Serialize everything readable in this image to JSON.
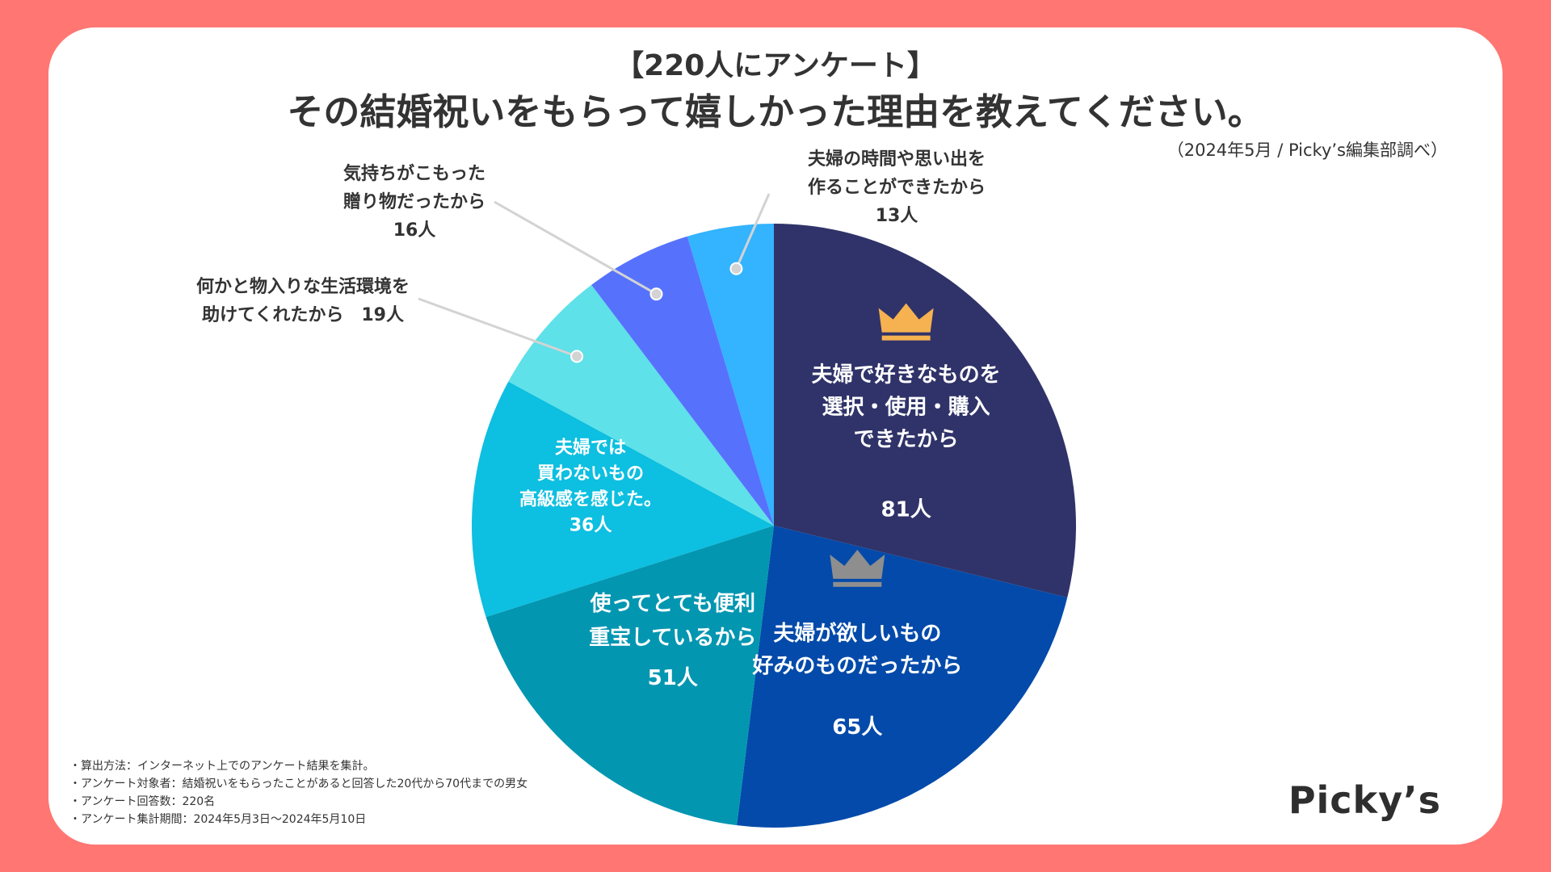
{
  "header": {
    "title_line1": "【220人にアンケート】",
    "title_line2": "その結婚祝いをもらって嬉しかった理由を教えてください。",
    "source": "（2024年5月 / Picky’s編集部調べ）"
  },
  "chart_data": {
    "type": "pie",
    "start": "12 o'clock",
    "direction": "clockwise",
    "total": 220,
    "slices": [
      {
        "label_lines": [
          "夫婦で好きなものを",
          "選択・使用・購入",
          "できたから"
        ],
        "value": 81,
        "value_label": "81人",
        "color": "#303369",
        "rank_icon": "gold-crown",
        "label_position": "inside"
      },
      {
        "label_lines": [
          "夫婦が欲しいもの",
          "好みのものだったから"
        ],
        "value": 65,
        "value_label": "65人",
        "color": "#034aaa",
        "rank_icon": "silver-crown",
        "label_position": "inside"
      },
      {
        "label_lines": [
          "使ってとても便利",
          "重宝しているから"
        ],
        "value": 51,
        "value_label": "51人",
        "color": "#0396b1",
        "label_position": "inside"
      },
      {
        "label_lines": [
          "夫婦では",
          "買わないもの",
          "高級感を感じた。"
        ],
        "value": 36,
        "value_label": "36人",
        "color": "#0dbfe0",
        "label_position": "inside"
      },
      {
        "label_lines": [
          "何かと物入りな生活環境を",
          "助けてくれたから　19人"
        ],
        "value": 19,
        "value_label": "",
        "color": "#5ee1e8",
        "label_position": "outside"
      },
      {
        "label_lines": [
          "気持ちがこもった",
          "贈り物だったから",
          "16人"
        ],
        "value": 16,
        "value_label": "",
        "color": "#5672fd",
        "label_position": "outside"
      },
      {
        "label_lines": [
          "夫婦の時間や思い出を",
          "作ることができたから",
          "13人"
        ],
        "value": 13,
        "value_label": "",
        "color": "#34b3fe",
        "label_position": "outside"
      }
    ]
  },
  "notes": [
    "・算出方法：インターネット上でのアンケート結果を集計。",
    "・アンケート対象者：結婚祝いをもらったことがあると回答した20代から70代までの男女",
    "・アンケート回答数：220名",
    "・アンケート集計期間：2024年5月3日〜2024年5月10日"
  ],
  "brand": {
    "logo": "Picky’s"
  },
  "colors": {
    "background": "#ff7672",
    "card": "#ffffff",
    "text": "#333333",
    "gold": "#f6b150",
    "silver": "#8e8e8e",
    "leader": "#d3d3d3"
  }
}
